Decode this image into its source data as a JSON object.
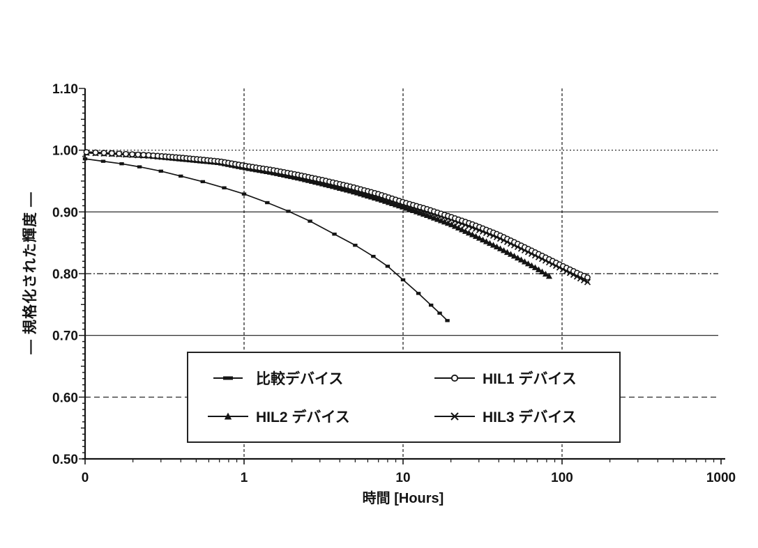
{
  "figure": {
    "background": "#ffffff",
    "ink_color": "#141414"
  },
  "chart_data": {
    "type": "line",
    "title": "",
    "xlabel": "時間 [Hours]",
    "ylabel": "―  規格化された輝度  ―",
    "x_scale": "log",
    "xlim": [
      0.1,
      1000
    ],
    "ylim": [
      0.5,
      1.1
    ],
    "grid": true,
    "legend_position": "bottom-center-box",
    "x_ticks": [
      {
        "v": 0.1,
        "label": "0"
      },
      {
        "v": 1,
        "label": "1"
      },
      {
        "v": 10,
        "label": "10"
      },
      {
        "v": 100,
        "label": "100"
      },
      {
        "v": 1000,
        "label": "1000"
      }
    ],
    "y_ticks": [
      {
        "v": 1.1,
        "label": "1.10"
      },
      {
        "v": 1.0,
        "label": "1.00"
      },
      {
        "v": 0.9,
        "label": "0.90"
      },
      {
        "v": 0.8,
        "label": "0.80"
      },
      {
        "v": 0.7,
        "label": "0.70"
      },
      {
        "v": 0.6,
        "label": "0.60"
      },
      {
        "v": 0.5,
        "label": "0.50"
      }
    ],
    "gridlines": {
      "horizontal": [
        1.0,
        0.9,
        0.8,
        0.7,
        0.6
      ],
      "vertical": [
        1,
        10,
        100
      ]
    },
    "series": [
      {
        "name": "比較デバイス",
        "marker": "dash",
        "points": [
          [
            0.1,
            0.986
          ],
          [
            0.13,
            0.982
          ],
          [
            0.17,
            0.978
          ],
          [
            0.22,
            0.973
          ],
          [
            0.3,
            0.966
          ],
          [
            0.4,
            0.958
          ],
          [
            0.55,
            0.949
          ],
          [
            0.75,
            0.939
          ],
          [
            1.0,
            0.929
          ],
          [
            1.4,
            0.915
          ],
          [
            1.9,
            0.901
          ],
          [
            2.6,
            0.885
          ],
          [
            3.7,
            0.864
          ],
          [
            5.0,
            0.846
          ],
          [
            6.5,
            0.828
          ],
          [
            8.0,
            0.812
          ],
          [
            10,
            0.79
          ],
          [
            12.5,
            0.768
          ],
          [
            15,
            0.749
          ],
          [
            17,
            0.736
          ],
          [
            19,
            0.724
          ]
        ]
      },
      {
        "name": "HIL1 デバイス",
        "marker": "circle",
        "points": [
          [
            0.1,
            0.997
          ],
          [
            0.15,
            0.995
          ],
          [
            0.25,
            0.992
          ],
          [
            0.4,
            0.988
          ],
          [
            0.7,
            0.982
          ],
          [
            1.0,
            0.975
          ],
          [
            1.5,
            0.968
          ],
          [
            2.2,
            0.96
          ],
          [
            3.2,
            0.951
          ],
          [
            4.7,
            0.941
          ],
          [
            7.0,
            0.929
          ],
          [
            10,
            0.916
          ],
          [
            14,
            0.905
          ],
          [
            20,
            0.892
          ],
          [
            28,
            0.879
          ],
          [
            40,
            0.863
          ],
          [
            55,
            0.846
          ],
          [
            75,
            0.829
          ],
          [
            100,
            0.813
          ],
          [
            125,
            0.801
          ],
          [
            150,
            0.792
          ]
        ]
      },
      {
        "name": "HIL2 デバイス",
        "marker": "triangle",
        "points": [
          [
            0.1,
            0.996
          ],
          [
            0.15,
            0.994
          ],
          [
            0.25,
            0.991
          ],
          [
            0.4,
            0.986
          ],
          [
            0.7,
            0.98
          ],
          [
            1.0,
            0.972
          ],
          [
            1.5,
            0.964
          ],
          [
            2.2,
            0.955
          ],
          [
            3.2,
            0.945
          ],
          [
            4.7,
            0.934
          ],
          [
            7.0,
            0.921
          ],
          [
            10,
            0.908
          ],
          [
            14,
            0.895
          ],
          [
            20,
            0.88
          ],
          [
            28,
            0.862
          ],
          [
            40,
            0.842
          ],
          [
            55,
            0.823
          ],
          [
            70,
            0.808
          ],
          [
            84,
            0.795
          ]
        ]
      },
      {
        "name": "HIL3 デバイス",
        "marker": "x",
        "points": [
          [
            0.1,
            0.996
          ],
          [
            0.15,
            0.994
          ],
          [
            0.25,
            0.991
          ],
          [
            0.4,
            0.987
          ],
          [
            0.7,
            0.981
          ],
          [
            1.0,
            0.974
          ],
          [
            1.5,
            0.966
          ],
          [
            2.2,
            0.958
          ],
          [
            3.2,
            0.949
          ],
          [
            4.7,
            0.938
          ],
          [
            7.0,
            0.926
          ],
          [
            10,
            0.913
          ],
          [
            14,
            0.901
          ],
          [
            20,
            0.888
          ],
          [
            28,
            0.874
          ],
          [
            40,
            0.858
          ],
          [
            55,
            0.841
          ],
          [
            75,
            0.824
          ],
          [
            100,
            0.808
          ],
          [
            125,
            0.795
          ],
          [
            148,
            0.785
          ]
        ]
      }
    ]
  }
}
